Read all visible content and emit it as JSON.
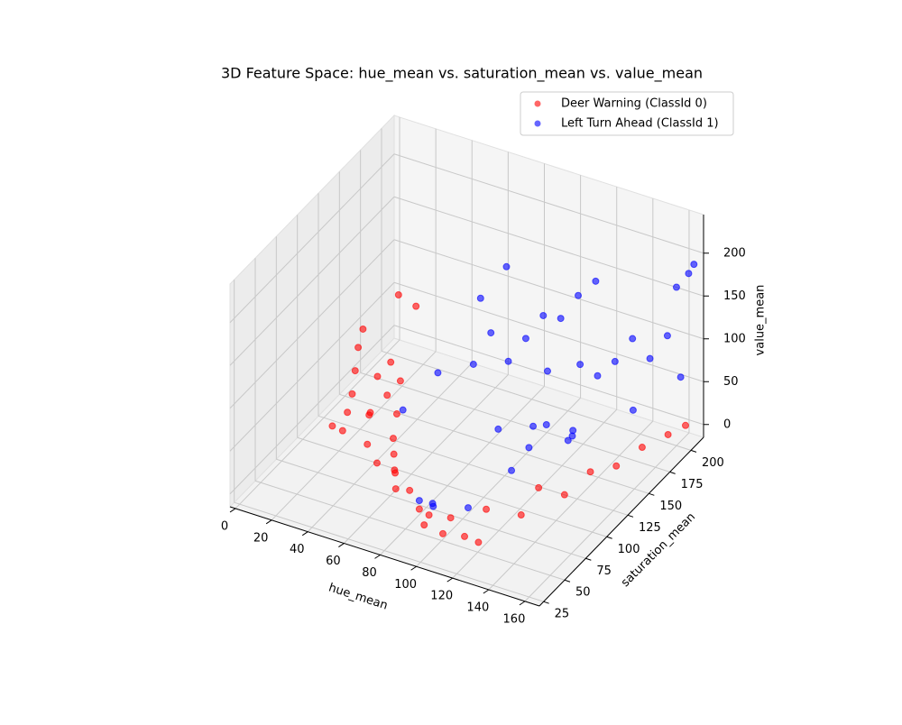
{
  "chart_data": {
    "type": "scatter3d",
    "title": "3D Feature Space: hue_mean vs. saturation_mean vs. value_mean",
    "xlabel": "hue_mean",
    "ylabel": "saturation_mean",
    "zlabel": "value_mean",
    "xlim": [
      -3,
      168
    ],
    "ylim": [
      20,
      215
    ],
    "zlim": [
      -15,
      245
    ],
    "xticks": [
      0,
      20,
      40,
      60,
      80,
      100,
      120,
      140,
      160
    ],
    "yticks": [
      25,
      50,
      75,
      100,
      125,
      150,
      175,
      200
    ],
    "zticks": [
      0,
      50,
      100,
      150,
      200
    ],
    "grid": true,
    "legend": "upper right",
    "series": [
      {
        "name": "Deer Warning (ClassId 0)",
        "color": "#ff0000",
        "x": [
          12,
          15,
          18,
          10,
          20,
          25,
          28,
          22,
          30,
          35,
          14,
          40,
          32,
          45,
          38,
          50,
          55,
          60,
          48,
          65,
          70,
          80,
          90,
          95,
          100,
          105,
          110,
          115,
          120,
          125,
          130,
          135,
          140,
          150,
          155,
          160,
          165,
          145,
          25,
          30
        ],
        "y": [
          140,
          130,
          120,
          150,
          110,
          135,
          120,
          100,
          140,
          125,
          105,
          130,
          110,
          115,
          95,
          100,
          90,
          80,
          85,
          70,
          60,
          55,
          45,
          40,
          35,
          50,
          30,
          45,
          60,
          40,
          80,
          90,
          110,
          150,
          170,
          190,
          200,
          130,
          160,
          170
        ],
        "z": [
          60,
          45,
          30,
          70,
          20,
          40,
          15,
          10,
          55,
          35,
          5,
          50,
          25,
          30,
          10,
          20,
          15,
          10,
          5,
          20,
          15,
          25,
          20,
          10,
          30,
          15,
          20,
          5,
          25,
          10,
          5,
          30,
          5,
          5,
          10,
          8,
          12,
          15,
          110,
          90
        ]
      },
      {
        "name": "Left Turn Ahead (ClassId 1)",
        "color": "#0000ff",
        "x": [
          90,
          95,
          100,
          110,
          120,
          125,
          130,
          100,
          105,
          110,
          115,
          120,
          95,
          90,
          85,
          70,
          75,
          80,
          130,
          135,
          140,
          145,
          150,
          155,
          160,
          150,
          165,
          163,
          160,
          140,
          135,
          128,
          118,
          108,
          60,
          112
        ],
        "y": [
          45,
          50,
          40,
          60,
          90,
          100,
          110,
          150,
          160,
          170,
          180,
          190,
          140,
          130,
          120,
          110,
          150,
          170,
          150,
          160,
          170,
          180,
          190,
          200,
          205,
          170,
          210,
          208,
          200,
          120,
          130,
          140,
          120,
          100,
          90,
          150
        ],
        "z": [
          30,
          25,
          35,
          20,
          40,
          60,
          80,
          120,
          140,
          130,
          150,
          160,
          100,
          140,
          110,
          100,
          150,
          170,
          110,
          90,
          100,
          120,
          90,
          110,
          60,
          50,
          190,
          180,
          170,
          70,
          50,
          30,
          60,
          70,
          70,
          90
        ]
      }
    ]
  }
}
